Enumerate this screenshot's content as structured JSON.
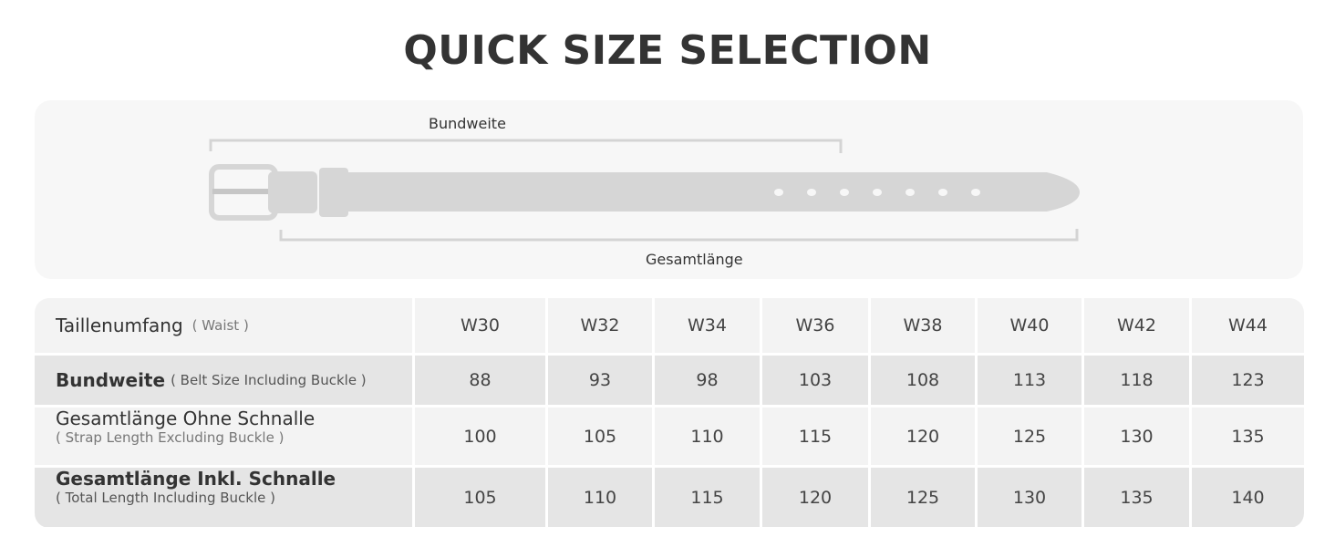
{
  "title": "QUICK SIZE SELECTION",
  "diagram": {
    "top_label": "Bundweite",
    "bottom_label": "Gesamtlänge"
  },
  "table": {
    "columns": [
      "W30",
      "W32",
      "W34",
      "W36",
      "W38",
      "W40",
      "W42",
      "W44"
    ],
    "header": {
      "label": "Taillenumfang",
      "sub": "( Waist )"
    },
    "rows": [
      {
        "label": "Bundweite",
        "sub": "( Belt Size Including Buckle )",
        "values": [
          "88",
          "93",
          "98",
          "103",
          "108",
          "113",
          "118",
          "123"
        ]
      },
      {
        "label": "Gesamtlänge Ohne Schnalle",
        "sub": "( Strap Length Excluding Buckle )",
        "values": [
          "100",
          "105",
          "110",
          "115",
          "120",
          "125",
          "130",
          "135"
        ]
      },
      {
        "label": "Gesamtlänge Inkl. Schnalle",
        "sub": "( Total Length Including Buckle )",
        "values": [
          "105",
          "110",
          "115",
          "120",
          "125",
          "130",
          "135",
          "140"
        ]
      }
    ]
  },
  "colors": {
    "belt": "#d6d6d6",
    "panel": "#f7f7f7",
    "row_light": "#f3f3f3",
    "row_dark": "#e5e5e5"
  }
}
